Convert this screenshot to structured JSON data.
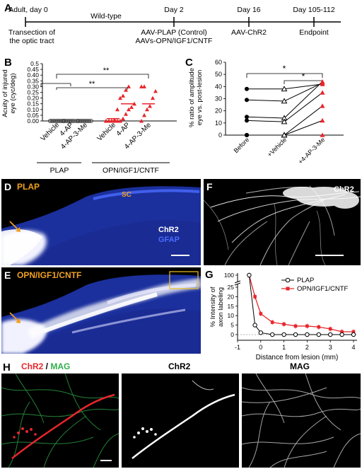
{
  "panelA": {
    "letter": "A",
    "stages": [
      {
        "day": "Adult, day 0",
        "desc": [
          "Transection of",
          "the optic tract"
        ]
      },
      {
        "day": "Day 2",
        "desc": [
          "AAV-PLAP (Control)",
          "AAVs-OPN/IGF1/CNTF"
        ]
      },
      {
        "day": "Day 16",
        "desc": [
          "AAV-ChR2"
        ]
      },
      {
        "day": "Day 105-112",
        "desc": [
          "Endpoint"
        ]
      }
    ],
    "wildtype": "Wild-type"
  },
  "panelB": {
    "letter": "B",
    "ylabel_line1": "Acuity of injured",
    "ylabel_line2": "eye (cyc/deg)",
    "yticks": [
      "0.00",
      "0.05",
      "0.10",
      "0.15",
      "0.20",
      "0.25",
      "0.30",
      "0.35",
      "0.40",
      "0.45",
      "0.5"
    ],
    "categories": [
      "Vehicle",
      "4-AP",
      "4-AP-3-Me",
      "Vehicle",
      "4-AP",
      "4-AP-3-Me"
    ],
    "group1": "PLAP",
    "group2": "OPN/IGF1/CNTF",
    "sig1": "**",
    "sig2": "**"
  },
  "panelC": {
    "letter": "C",
    "ylabel_line1": "% ratio of amplitude",
    "ylabel_line2": "eye vs. post-lesion",
    "yticks": [
      "0",
      "10",
      "20",
      "30",
      "40",
      "50",
      "60"
    ],
    "categories": [
      "Before",
      "+Vehicle",
      "+4-AP-3-Me"
    ],
    "sig1": "*",
    "sig2": "*"
  },
  "panelD": {
    "letter": "D",
    "tag": "PLAP",
    "sc": "SC",
    "chr2": "ChR2",
    "gfap": "GFAP"
  },
  "panelE": {
    "letter": "E",
    "tag": "OPN/IGF1/CNTF"
  },
  "panelF": {
    "letter": "F",
    "tag": "ChR2"
  },
  "panelG": {
    "letter": "G",
    "ylabel_line1": "% Intensity of",
    "ylabel_line2": "axon labeling",
    "xlabel": "Distance from lesion (mm)",
    "yticks": [
      "0",
      "5",
      "10",
      "15",
      "20",
      "25",
      "100"
    ],
    "xticks": [
      "-1",
      "0",
      "1",
      "2",
      "3",
      "4"
    ],
    "legend": [
      "PLAP",
      "OPN/IGF1/CNTF"
    ]
  },
  "panelH": {
    "letter": "H",
    "t1a": "ChR2",
    "t1sep": " / ",
    "t1b": "MAG",
    "t2": "ChR2",
    "t3": "MAG"
  },
  "colors": {
    "red": "#e8262b",
    "blue": "#2c4fd6",
    "orange": "#f0a020",
    "green": "#2fb04a"
  },
  "chart_data": [
    {
      "type": "scatter",
      "panel": "B",
      "ylim": [
        0,
        0.5
      ],
      "categories": [
        "Vehicle",
        "4-AP",
        "4-AP-3-Me",
        "Vehicle",
        "4-AP",
        "4-AP-3-Me"
      ],
      "series": [
        {
          "values": [
            [
              0,
              0,
              0,
              0,
              0,
              0,
              0,
              0,
              0,
              0,
              0,
              0,
              0,
              0
            ],
            [
              0,
              0,
              0,
              0,
              0,
              0,
              0,
              0,
              0,
              0,
              0,
              0
            ],
            [
              0,
              0,
              0,
              0,
              0,
              0,
              0,
              0,
              0,
              0,
              0,
              0,
              0
            ]
          ]
        },
        {
          "values": [
            [
              0,
              0,
              0,
              0,
              0,
              0,
              0,
              0,
              0,
              0.01,
              0.1
            ],
            [
              0,
              0.02,
              0.06,
              0.1,
              0.12,
              0.15,
              0.2,
              0.22,
              0.27,
              0.3
            ],
            [
              0,
              0.05,
              0.1,
              0.13,
              0.2,
              0.26,
              0.3,
              0.3
            ]
          ]
        },
        {
          "means": [
            0.02,
            0.15,
            0.15
          ]
        }
      ]
    },
    {
      "type": "line",
      "panel": "C",
      "categories": [
        "Before",
        "+Vehicle",
        "+4-AP-3-Me"
      ],
      "ylim": [
        0,
        60
      ],
      "series": [
        {
          "values": [
            38,
            38,
            42
          ]
        },
        {
          "values": [
            29,
            28,
            43
          ]
        },
        {
          "values": [
            15,
            14,
            44
          ]
        },
        {
          "values": [
            12,
            11,
            35
          ]
        },
        {
          "values": [
            0,
            0,
            24
          ]
        },
        {
          "values": [
            0,
            0,
            12
          ]
        },
        {
          "values": [
            0,
            0,
            0
          ]
        }
      ]
    },
    {
      "type": "line",
      "panel": "G",
      "xlabel": "Distance from lesion (mm)",
      "ylabel": "% Intensity of axon labeling",
      "series": [
        {
          "name": "PLAP",
          "x": [
            -0.5,
            -0.25,
            0,
            0.5,
            1,
            1.5,
            2,
            2.5,
            3,
            3.5,
            4
          ],
          "values": [
            100,
            5,
            1,
            0,
            0,
            0,
            0,
            0,
            0,
            0,
            0
          ]
        },
        {
          "name": "OPN/IGF1/CNTF",
          "x": [
            -0.5,
            -0.25,
            0,
            0.5,
            1,
            1.5,
            2,
            2.5,
            3,
            3.5,
            4
          ],
          "values": [
            100,
            20,
            11,
            6.5,
            5.5,
            4.5,
            4.5,
            4,
            3,
            1.5,
            1.5
          ]
        }
      ]
    }
  ]
}
